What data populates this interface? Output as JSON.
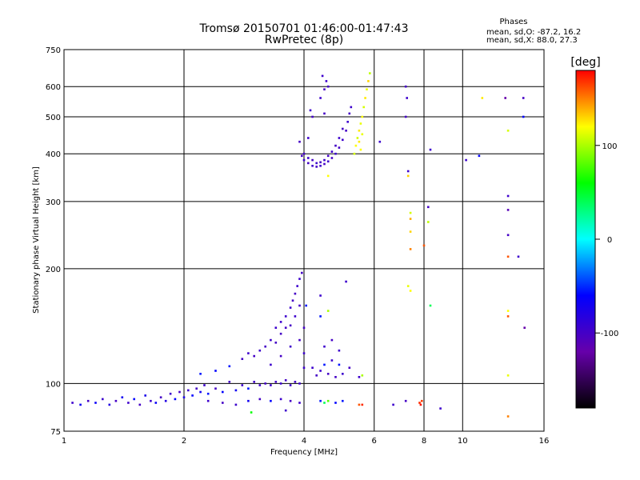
{
  "chart_data": {
    "type": "scatter",
    "title": "Tromsø 20150701 01:46:00-01:47:43",
    "subtitle": "RwPretec (8p)",
    "xlabel": "Frequency [MHz]",
    "ylabel": "Stationary phase Virtual Height [km]",
    "x_scale": "log",
    "y_scale": "log",
    "xlim": [
      1,
      16
    ],
    "ylim": [
      75,
      750
    ],
    "x_ticks": [
      1,
      2,
      4,
      6,
      8,
      10,
      16
    ],
    "x_tick_labels": [
      "1",
      "2",
      "4",
      "6",
      "8",
      "10",
      "16"
    ],
    "y_ticks": [
      75,
      100,
      200,
      300,
      400,
      500,
      600,
      750
    ],
    "y_tick_labels": [
      "75",
      "100",
      "200",
      "300",
      "400",
      "500",
      "600",
      "750"
    ],
    "grid": true,
    "info": {
      "heading": "Phases",
      "line_o": "mean, sd,O: -87.2, 16.2",
      "line_x": "mean, sd,X:  88.0, 27.3"
    },
    "colorbar": {
      "label": "[deg]",
      "range": [
        -180,
        180
      ],
      "ticks": [
        100,
        0,
        -100
      ],
      "tick_labels": [
        "100",
        "0",
        "-100"
      ],
      "colormap": [
        "#000000",
        "#6600aa",
        "#0000ff",
        "#00ffff",
        "#00ff00",
        "#ffff00",
        "#ff0000"
      ]
    },
    "points": [
      {
        "x": 1.05,
        "y": 89,
        "phase": -95
      },
      {
        "x": 1.1,
        "y": 88,
        "phase": -70
      },
      {
        "x": 1.15,
        "y": 90,
        "phase": -100
      },
      {
        "x": 1.2,
        "y": 89,
        "phase": -65
      },
      {
        "x": 1.25,
        "y": 91,
        "phase": -95
      },
      {
        "x": 1.3,
        "y": 88,
        "phase": -80
      },
      {
        "x": 1.35,
        "y": 90,
        "phase": -100
      },
      {
        "x": 1.4,
        "y": 92,
        "phase": -70
      },
      {
        "x": 1.45,
        "y": 89,
        "phase": -95
      },
      {
        "x": 1.5,
        "y": 91,
        "phase": -60
      },
      {
        "x": 1.55,
        "y": 88,
        "phase": -100
      },
      {
        "x": 1.6,
        "y": 93,
        "phase": -75
      },
      {
        "x": 1.65,
        "y": 90,
        "phase": -95
      },
      {
        "x": 1.7,
        "y": 89,
        "phase": -65
      },
      {
        "x": 1.75,
        "y": 92,
        "phase": -100
      },
      {
        "x": 1.8,
        "y": 90,
        "phase": -80
      },
      {
        "x": 1.85,
        "y": 94,
        "phase": -95
      },
      {
        "x": 1.9,
        "y": 91,
        "phase": -60
      },
      {
        "x": 1.95,
        "y": 95,
        "phase": -100
      },
      {
        "x": 2.0,
        "y": 92,
        "phase": -75
      },
      {
        "x": 2.05,
        "y": 96,
        "phase": -95
      },
      {
        "x": 2.1,
        "y": 93,
        "phase": -60
      },
      {
        "x": 2.15,
        "y": 97,
        "phase": -100
      },
      {
        "x": 2.2,
        "y": 95,
        "phase": -70
      },
      {
        "x": 2.25,
        "y": 99,
        "phase": -95
      },
      {
        "x": 2.3,
        "y": 94,
        "phase": -55
      },
      {
        "x": 2.4,
        "y": 97,
        "phase": -100
      },
      {
        "x": 2.5,
        "y": 95,
        "phase": -60
      },
      {
        "x": 2.6,
        "y": 101,
        "phase": -100
      },
      {
        "x": 2.7,
        "y": 96,
        "phase": -70
      },
      {
        "x": 2.8,
        "y": 99,
        "phase": -95
      },
      {
        "x": 2.9,
        "y": 97,
        "phase": -55
      },
      {
        "x": 3.0,
        "y": 101,
        "phase": -100
      },
      {
        "x": 3.1,
        "y": 99,
        "phase": -95
      },
      {
        "x": 3.2,
        "y": 100,
        "phase": -100
      },
      {
        "x": 3.3,
        "y": 99,
        "phase": -95
      },
      {
        "x": 3.4,
        "y": 101,
        "phase": -100
      },
      {
        "x": 3.5,
        "y": 100,
        "phase": -95
      },
      {
        "x": 3.6,
        "y": 102,
        "phase": -100
      },
      {
        "x": 3.7,
        "y": 99,
        "phase": -95
      },
      {
        "x": 3.8,
        "y": 101,
        "phase": -100
      },
      {
        "x": 3.9,
        "y": 100,
        "phase": -95
      },
      {
        "x": 2.3,
        "y": 90,
        "phase": -95
      },
      {
        "x": 2.5,
        "y": 89,
        "phase": -100
      },
      {
        "x": 2.7,
        "y": 88,
        "phase": -95
      },
      {
        "x": 2.9,
        "y": 90,
        "phase": -70
      },
      {
        "x": 3.1,
        "y": 91,
        "phase": -100
      },
      {
        "x": 3.3,
        "y": 90,
        "phase": -60
      },
      {
        "x": 3.5,
        "y": 91,
        "phase": -95
      },
      {
        "x": 3.7,
        "y": 90,
        "phase": -100
      },
      {
        "x": 3.9,
        "y": 89,
        "phase": -95
      },
      {
        "x": 2.95,
        "y": 84,
        "phase": 60
      },
      {
        "x": 3.6,
        "y": 85,
        "phase": -95
      },
      {
        "x": 2.2,
        "y": 106,
        "phase": -55
      },
      {
        "x": 2.4,
        "y": 108,
        "phase": -60
      },
      {
        "x": 2.6,
        "y": 111,
        "phase": -55
      },
      {
        "x": 2.8,
        "y": 116,
        "phase": -100
      },
      {
        "x": 2.9,
        "y": 120,
        "phase": -95
      },
      {
        "x": 3.0,
        "y": 118,
        "phase": -100
      },
      {
        "x": 3.1,
        "y": 122,
        "phase": -95
      },
      {
        "x": 3.2,
        "y": 125,
        "phase": -100
      },
      {
        "x": 3.3,
        "y": 130,
        "phase": -95
      },
      {
        "x": 3.4,
        "y": 128,
        "phase": -100
      },
      {
        "x": 3.4,
        "y": 140,
        "phase": -95
      },
      {
        "x": 3.5,
        "y": 135,
        "phase": -100
      },
      {
        "x": 3.5,
        "y": 145,
        "phase": -95
      },
      {
        "x": 3.6,
        "y": 140,
        "phase": -100
      },
      {
        "x": 3.6,
        "y": 150,
        "phase": -95
      },
      {
        "x": 3.7,
        "y": 142,
        "phase": -100
      },
      {
        "x": 3.7,
        "y": 158,
        "phase": -95
      },
      {
        "x": 3.75,
        "y": 165,
        "phase": -100
      },
      {
        "x": 3.8,
        "y": 150,
        "phase": -95
      },
      {
        "x": 3.8,
        "y": 172,
        "phase": -100
      },
      {
        "x": 3.85,
        "y": 180,
        "phase": -95
      },
      {
        "x": 3.9,
        "y": 160,
        "phase": -100
      },
      {
        "x": 3.9,
        "y": 188,
        "phase": -95
      },
      {
        "x": 3.95,
        "y": 195,
        "phase": -100
      },
      {
        "x": 3.3,
        "y": 112,
        "phase": -95
      },
      {
        "x": 3.5,
        "y": 118,
        "phase": -100
      },
      {
        "x": 3.7,
        "y": 125,
        "phase": -95
      },
      {
        "x": 3.9,
        "y": 130,
        "phase": -100
      },
      {
        "x": 4.0,
        "y": 120,
        "phase": -95
      },
      {
        "x": 4.0,
        "y": 140,
        "phase": -100
      },
      {
        "x": 4.0,
        "y": 110,
        "phase": -95
      },
      {
        "x": 4.05,
        "y": 160,
        "phase": -55
      },
      {
        "x": 4.2,
        "y": 110,
        "phase": -95
      },
      {
        "x": 4.3,
        "y": 105,
        "phase": -100
      },
      {
        "x": 4.4,
        "y": 108,
        "phase": -95
      },
      {
        "x": 4.5,
        "y": 112,
        "phase": -55
      },
      {
        "x": 4.6,
        "y": 106,
        "phase": -100
      },
      {
        "x": 4.7,
        "y": 115,
        "phase": -95
      },
      {
        "x": 4.8,
        "y": 104,
        "phase": -100
      },
      {
        "x": 4.9,
        "y": 112,
        "phase": -55
      },
      {
        "x": 5.0,
        "y": 106,
        "phase": -95
      },
      {
        "x": 5.2,
        "y": 110,
        "phase": -100
      },
      {
        "x": 5.5,
        "y": 104,
        "phase": -95
      },
      {
        "x": 5.6,
        "y": 105,
        "phase": 100
      },
      {
        "x": 4.5,
        "y": 125,
        "phase": -95
      },
      {
        "x": 4.7,
        "y": 130,
        "phase": -100
      },
      {
        "x": 4.9,
        "y": 122,
        "phase": -95
      },
      {
        "x": 4.4,
        "y": 150,
        "phase": -55
      },
      {
        "x": 4.6,
        "y": 155,
        "phase": 100
      },
      {
        "x": 4.4,
        "y": 170,
        "phase": -95
      },
      {
        "x": 5.1,
        "y": 185,
        "phase": -95
      },
      {
        "x": 4.4,
        "y": 90,
        "phase": -55
      },
      {
        "x": 4.5,
        "y": 89,
        "phase": 40
      },
      {
        "x": 4.6,
        "y": 90,
        "phase": 80
      },
      {
        "x": 4.8,
        "y": 89,
        "phase": -60
      },
      {
        "x": 5.0,
        "y": 90,
        "phase": -55
      },
      {
        "x": 5.5,
        "y": 88,
        "phase": 160
      },
      {
        "x": 5.6,
        "y": 88,
        "phase": 170
      },
      {
        "x": 6.7,
        "y": 88,
        "phase": -95
      },
      {
        "x": 7.2,
        "y": 90,
        "phase": -100
      },
      {
        "x": 7.8,
        "y": 89,
        "phase": 170
      },
      {
        "x": 7.9,
        "y": 90,
        "phase": 165
      },
      {
        "x": 7.85,
        "y": 88,
        "phase": 175
      },
      {
        "x": 8.8,
        "y": 86,
        "phase": -95
      },
      {
        "x": 3.95,
        "y": 395,
        "phase": -100
      },
      {
        "x": 4.0,
        "y": 385,
        "phase": -95
      },
      {
        "x": 4.1,
        "y": 378,
        "phase": -100
      },
      {
        "x": 4.2,
        "y": 372,
        "phase": -95
      },
      {
        "x": 4.3,
        "y": 370,
        "phase": -100
      },
      {
        "x": 4.4,
        "y": 372,
        "phase": -95
      },
      {
        "x": 4.5,
        "y": 376,
        "phase": -100
      },
      {
        "x": 4.6,
        "y": 382,
        "phase": -95
      },
      {
        "x": 4.7,
        "y": 390,
        "phase": -100
      },
      {
        "x": 4.8,
        "y": 400,
        "phase": -95
      },
      {
        "x": 4.9,
        "y": 415,
        "phase": -100
      },
      {
        "x": 5.0,
        "y": 435,
        "phase": -95
      },
      {
        "x": 5.1,
        "y": 460,
        "phase": -100
      },
      {
        "x": 5.15,
        "y": 485,
        "phase": -95
      },
      {
        "x": 5.2,
        "y": 510,
        "phase": -100
      },
      {
        "x": 5.25,
        "y": 530,
        "phase": -95
      },
      {
        "x": 4.0,
        "y": 400,
        "phase": -100
      },
      {
        "x": 4.1,
        "y": 390,
        "phase": -95
      },
      {
        "x": 4.2,
        "y": 385,
        "phase": -100
      },
      {
        "x": 4.3,
        "y": 378,
        "phase": -95
      },
      {
        "x": 4.4,
        "y": 380,
        "phase": -100
      },
      {
        "x": 4.5,
        "y": 385,
        "phase": -95
      },
      {
        "x": 4.6,
        "y": 395,
        "phase": -100
      },
      {
        "x": 4.7,
        "y": 405,
        "phase": -95
      },
      {
        "x": 4.8,
        "y": 420,
        "phase": -100
      },
      {
        "x": 4.9,
        "y": 440,
        "phase": -95
      },
      {
        "x": 5.0,
        "y": 465,
        "phase": -100
      },
      {
        "x": 4.1,
        "y": 440,
        "phase": -95
      },
      {
        "x": 4.2,
        "y": 500,
        "phase": -100
      },
      {
        "x": 4.15,
        "y": 520,
        "phase": -95
      },
      {
        "x": 4.5,
        "y": 590,
        "phase": -100
      },
      {
        "x": 4.55,
        "y": 620,
        "phase": -95
      },
      {
        "x": 4.6,
        "y": 600,
        "phase": -100
      },
      {
        "x": 4.45,
        "y": 640,
        "phase": -95
      },
      {
        "x": 4.5,
        "y": 510,
        "phase": -100
      },
      {
        "x": 4.4,
        "y": 560,
        "phase": -95
      },
      {
        "x": 3.9,
        "y": 430,
        "phase": -100
      },
      {
        "x": 5.4,
        "y": 420,
        "phase": 120
      },
      {
        "x": 5.45,
        "y": 440,
        "phase": 110
      },
      {
        "x": 5.5,
        "y": 460,
        "phase": 125
      },
      {
        "x": 5.55,
        "y": 480,
        "phase": 115
      },
      {
        "x": 5.6,
        "y": 500,
        "phase": 120
      },
      {
        "x": 5.65,
        "y": 530,
        "phase": 110
      },
      {
        "x": 5.7,
        "y": 560,
        "phase": 125
      },
      {
        "x": 5.75,
        "y": 590,
        "phase": 115
      },
      {
        "x": 5.8,
        "y": 620,
        "phase": 130
      },
      {
        "x": 5.85,
        "y": 650,
        "phase": 105
      },
      {
        "x": 5.5,
        "y": 430,
        "phase": 125
      },
      {
        "x": 5.6,
        "y": 450,
        "phase": 115
      },
      {
        "x": 5.55,
        "y": 410,
        "phase": 120
      },
      {
        "x": 5.35,
        "y": 400,
        "phase": 110
      },
      {
        "x": 4.6,
        "y": 350,
        "phase": 120
      },
      {
        "x": 6.2,
        "y": 430,
        "phase": -95
      },
      {
        "x": 7.2,
        "y": 600,
        "phase": -100
      },
      {
        "x": 7.25,
        "y": 560,
        "phase": -95
      },
      {
        "x": 7.2,
        "y": 500,
        "phase": -100
      },
      {
        "x": 7.3,
        "y": 360,
        "phase": -95
      },
      {
        "x": 7.3,
        "y": 350,
        "phase": 130
      },
      {
        "x": 7.4,
        "y": 280,
        "phase": 110
      },
      {
        "x": 7.4,
        "y": 270,
        "phase": 140
      },
      {
        "x": 7.4,
        "y": 250,
        "phase": 130
      },
      {
        "x": 7.4,
        "y": 225,
        "phase": 150
      },
      {
        "x": 7.3,
        "y": 180,
        "phase": 115
      },
      {
        "x": 7.4,
        "y": 175,
        "phase": 120
      },
      {
        "x": 8.3,
        "y": 410,
        "phase": -95
      },
      {
        "x": 8.2,
        "y": 290,
        "phase": -100
      },
      {
        "x": 8.2,
        "y": 265,
        "phase": 105
      },
      {
        "x": 8.0,
        "y": 230,
        "phase": 160
      },
      {
        "x": 8.3,
        "y": 160,
        "phase": 40
      },
      {
        "x": 10.2,
        "y": 385,
        "phase": -95
      },
      {
        "x": 11.0,
        "y": 395,
        "phase": -60
      },
      {
        "x": 11.2,
        "y": 560,
        "phase": 125
      },
      {
        "x": 12.8,
        "y": 560,
        "phase": -120
      },
      {
        "x": 14.2,
        "y": 560,
        "phase": -100
      },
      {
        "x": 14.2,
        "y": 500,
        "phase": -60
      },
      {
        "x": 13.0,
        "y": 460,
        "phase": 110
      },
      {
        "x": 13.0,
        "y": 310,
        "phase": -95
      },
      {
        "x": 13.0,
        "y": 285,
        "phase": -110
      },
      {
        "x": 13.0,
        "y": 245,
        "phase": -100
      },
      {
        "x": 13.0,
        "y": 215,
        "phase": 160
      },
      {
        "x": 13.8,
        "y": 215,
        "phase": -95
      },
      {
        "x": 13.0,
        "y": 155,
        "phase": 120
      },
      {
        "x": 13.0,
        "y": 150,
        "phase": 160
      },
      {
        "x": 14.3,
        "y": 140,
        "phase": -120
      },
      {
        "x": 13.0,
        "y": 105,
        "phase": 115
      },
      {
        "x": 13.0,
        "y": 82,
        "phase": 150
      }
    ]
  }
}
